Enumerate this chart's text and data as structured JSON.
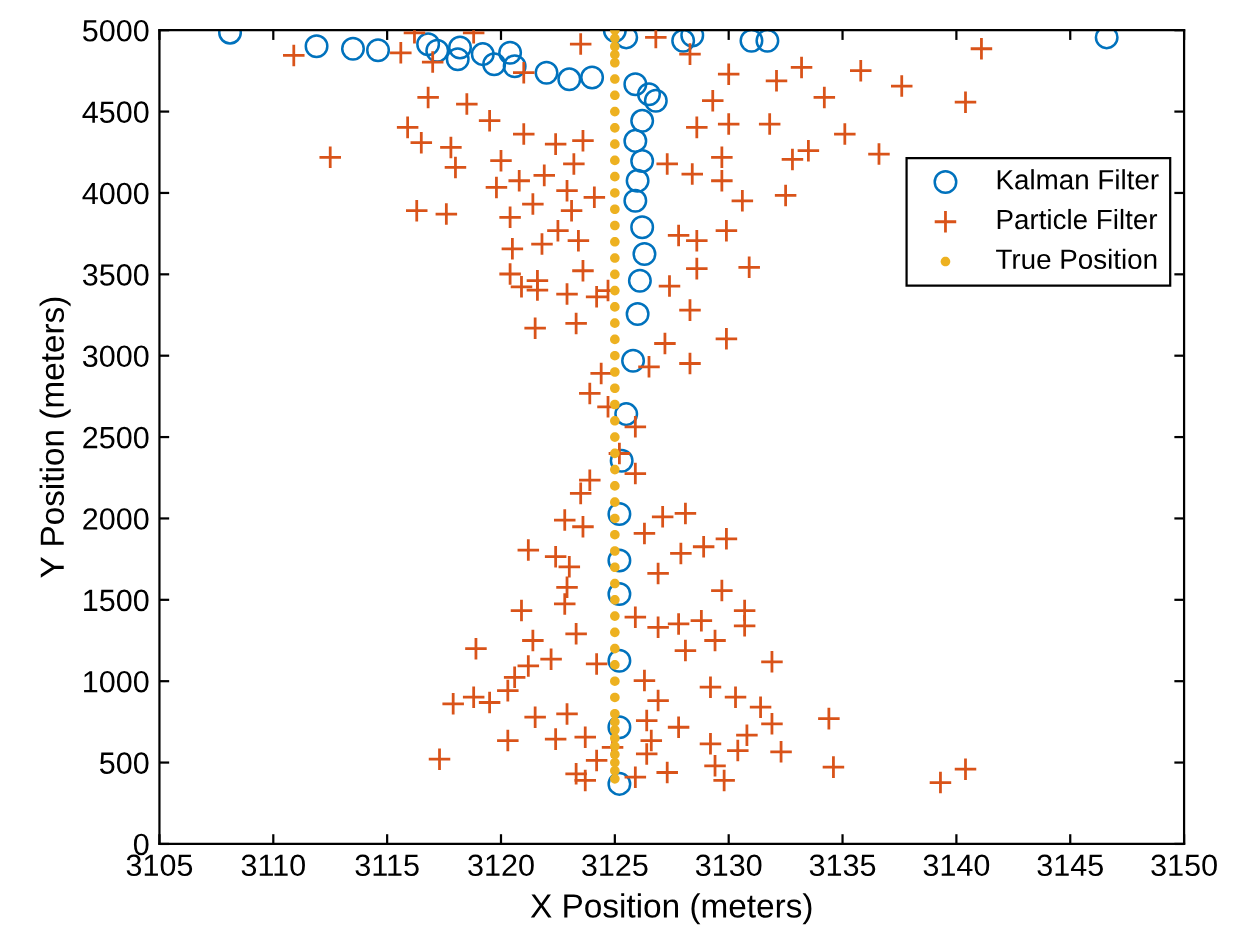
{
  "chart_data": {
    "type": "scatter",
    "xlabel": "X Position (meters)",
    "ylabel": "Y Position (meters)",
    "xlim": [
      3105,
      3150
    ],
    "ylim": [
      0,
      5000
    ],
    "xticks": [
      3105,
      3110,
      3115,
      3120,
      3125,
      3130,
      3135,
      3140,
      3145,
      3150
    ],
    "yticks": [
      0,
      500,
      1000,
      1500,
      2000,
      2500,
      3000,
      3500,
      4000,
      4500,
      5000
    ],
    "grid": false,
    "legend": "right",
    "series": [
      {
        "name": "Kalman Filter",
        "color": "#0072bd",
        "marker": "circle",
        "x": [
          3108.1,
          3111.9,
          3113.5,
          3114.6,
          3116.8,
          3117.2,
          3118.2,
          3118.1,
          3119.2,
          3120.4,
          3119.7,
          3120.6,
          3122.0,
          3123.0,
          3124.0,
          3125.0,
          3125.5,
          3128.0,
          3128.4,
          3131.0,
          3131.7,
          3146.6,
          3125.9,
          3126.5,
          3126.8,
          3126.2,
          3125.9,
          3126.2,
          3126.0,
          3125.9,
          3126.2,
          3126.3,
          3126.1,
          3126.0,
          3125.8,
          3125.5,
          3125.3,
          3125.2,
          3125.2,
          3125.2,
          3125.2,
          3125.2,
          3125.2
        ],
        "values": [
          4985,
          4902,
          4886,
          4877,
          4914,
          4874,
          4894,
          4821,
          4853,
          4861,
          4791,
          4779,
          4738,
          4698,
          4710,
          4996,
          4956,
          4935,
          4968,
          4935,
          4935,
          4956,
          4668,
          4607,
          4566,
          4443,
          4320,
          4197,
          4075,
          3952,
          3789,
          3625,
          3461,
          3256,
          2969,
          2641,
          2355,
          2027,
          1741,
          1536,
          1126,
          717,
          369
        ]
      },
      {
        "name": "Particle Filter",
        "color": "#d95319",
        "marker": "cross",
        "x": [
          3110.9,
          3116.2,
          3118.8,
          3115.6,
          3117.0,
          3121.0,
          3123.5,
          3126.8,
          3128.3,
          3130.0,
          3132.1,
          3133.2,
          3135.8,
          3137.6,
          3141.1,
          3140.4,
          3134.2,
          3129.3,
          3116.8,
          3118.5,
          3119.5,
          3115.9,
          3112.5,
          3117.8,
          3116.5,
          3121.0,
          3122.4,
          3123.6,
          3128.6,
          3131.8,
          3130.0,
          3135.1,
          3133.5,
          3136.6,
          3132.8,
          3129.7,
          3120.0,
          3118.0,
          3121.9,
          3123.2,
          3128.4,
          3127.3,
          3120.8,
          3119.8,
          3122.9,
          3124.1,
          3129.7,
          3130.6,
          3132.5,
          3116.3,
          3117.6,
          3120.4,
          3121.4,
          3123.1,
          3121.8,
          3120.5,
          3122.5,
          3123.4,
          3128.6,
          3127.8,
          3129.9,
          3130.9,
          3128.6,
          3120.4,
          3121.6,
          3123.6,
          3124.7,
          3127.4,
          3122.9,
          3120.9,
          3121.5,
          3121.6,
          3123.3,
          3124.2,
          3128.3,
          3127.2,
          3129.9,
          3128.3,
          3126.5,
          3123.9,
          3124.4,
          3124.7,
          3125.2,
          3125.9,
          3123.5,
          3127.1,
          3128.1,
          3129.9,
          3128.9,
          3127.9,
          3126.3,
          3123.6,
          3122.8,
          3121.2,
          3122.4,
          3123.0,
          3126.9,
          3123.9,
          3125.9,
          3120.9,
          3118.9,
          3121.4,
          3122.2,
          3121.2,
          3120.6,
          3117.9,
          3118.8,
          3119.5,
          3120.3,
          3121.5,
          3120.3,
          3117.3,
          3122.4,
          3123.7,
          3122.9,
          3123.3,
          3124.2,
          3122.9,
          3122.8,
          3125.9,
          3126.9,
          3127.8,
          3128.8,
          3129.7,
          3130.7,
          3130.7,
          3129.4,
          3128.1,
          3131.9,
          3126.3,
          3129.2,
          3130.3,
          3131.4,
          3126.9,
          3126.4,
          3127.8,
          3131.9,
          3130.8,
          3129.2,
          3130.4,
          3132.3,
          3134.4,
          3134.6,
          3139.3,
          3140.4,
          3129.4,
          3129.8,
          3127.3,
          3125.9,
          3123.3,
          3123.7,
          3124.2,
          3126.4,
          3126.6,
          3124.9
        ],
        "values": [
          4845,
          4984,
          4984,
          4861,
          4804,
          4739,
          4915,
          4956,
          4853,
          4730,
          4689,
          4771,
          4751,
          4657,
          4886,
          4558,
          4587,
          4567,
          4587,
          4546,
          4444,
          4403,
          4219,
          4280,
          4309,
          4362,
          4300,
          4321,
          4403,
          4423,
          4423,
          4362,
          4260,
          4239,
          4206,
          4219,
          4198,
          4157,
          4108,
          4178,
          4116,
          4178,
          4075,
          4034,
          4014,
          3973,
          4075,
          3952,
          3985,
          3891,
          3870,
          3850,
          3932,
          3891,
          3686,
          3657,
          3768,
          3707,
          3707,
          3739,
          3768,
          3543,
          3535,
          3502,
          3461,
          3522,
          3400,
          3428,
          3379,
          3423,
          3169,
          3403,
          3198,
          3362,
          3280,
          3075,
          3104,
          2952,
          2932,
          2768,
          2891,
          2686,
          2399,
          2276,
          2154,
          2010,
          2031,
          1875,
          1826,
          1785,
          1908,
          1949,
          1990,
          1806,
          1765,
          1703,
          1662,
          2235,
          2563,
          1434,
          1200,
          1250,
          1135,
          1094,
          1024,
          861,
          902,
          869,
          942,
          779,
          635,
          521,
          644,
          656,
          799,
          1291,
          1106,
          1577,
          1475,
          1393,
          1331,
          1352,
          1372,
          1557,
          1434,
          1340,
          1250,
          1188,
          1119,
          1004,
          963,
          902,
          840,
          881,
          758,
          717,
          738,
          668,
          615,
          574,
          566,
          770,
          472,
          377,
          459,
          480,
          390,
          439,
          410,
          431,
          390,
          513,
          553,
          635,
          594
        ]
      },
      {
        "name": "True Position",
        "color": "#edb120",
        "marker": "point",
        "x": [
          3125,
          3125,
          3125,
          3125,
          3125,
          3125,
          3125,
          3125,
          3125,
          3125,
          3125,
          3125,
          3125,
          3125,
          3125,
          3125,
          3125,
          3125,
          3125,
          3125,
          3125,
          3125,
          3125,
          3125,
          3125,
          3125,
          3125,
          3125,
          3125,
          3125,
          3125,
          3125,
          3125,
          3125,
          3125,
          3125,
          3125,
          3125,
          3125,
          3125,
          3125,
          3125,
          3125,
          3125,
          3125,
          3125,
          3125,
          3125,
          3125,
          3125,
          3125,
          3125,
          3125
        ],
        "values": [
          400,
          450,
          500,
          600,
          700,
          800,
          900,
          1000,
          1100,
          1200,
          1300,
          1400,
          1500,
          1600,
          1700,
          1800,
          1900,
          2000,
          2100,
          2200,
          2300,
          2400,
          2500,
          2600,
          2700,
          2800,
          2900,
          3000,
          3100,
          3200,
          3300,
          3400,
          3500,
          3600,
          3700,
          3800,
          3900,
          4000,
          4100,
          4200,
          4300,
          4400,
          4500,
          4600,
          4700,
          4800,
          4850,
          4900,
          4950,
          5000,
          550,
          650,
          750
        ]
      }
    ]
  }
}
